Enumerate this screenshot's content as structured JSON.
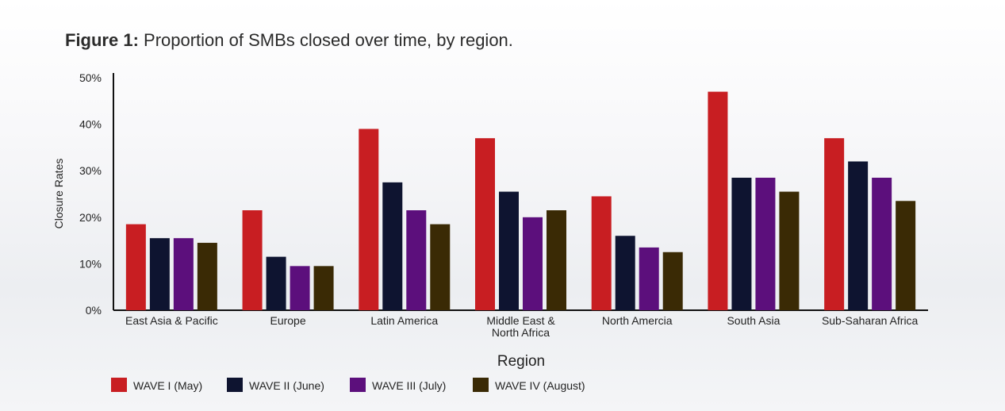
{
  "title": {
    "prefix": "Figure 1:",
    "text": " Proportion of SMBs closed over time, by region."
  },
  "chart_data": {
    "type": "bar",
    "title": "Figure 1: Proportion of SMBs closed over time, by region.",
    "xlabel": "Region",
    "ylabel": "Closure Rates",
    "ylim": [
      0,
      50
    ],
    "yticks": [
      "0%",
      "10%",
      "20%",
      "30%",
      "40%",
      "50%"
    ],
    "categories": [
      [
        "East Asia & Pacific"
      ],
      [
        "Europe"
      ],
      [
        "Latin America"
      ],
      [
        "Middle East &",
        "North Africa"
      ],
      [
        "North Amercia"
      ],
      [
        "South Asia"
      ],
      [
        "Sub-Saharan Africa"
      ]
    ],
    "series": [
      {
        "name": "WAVE I (May)",
        "color": "#c81e22",
        "values": [
          18.5,
          21.5,
          39,
          37,
          24.5,
          47,
          37
        ]
      },
      {
        "name": "WAVE II (June)",
        "color": "#0e1430",
        "values": [
          15.5,
          11.5,
          27.5,
          25.5,
          16,
          28.5,
          32
        ]
      },
      {
        "name": "WAVE III (July)",
        "color": "#5c0f7c",
        "values": [
          15.5,
          9.5,
          21.5,
          20,
          13.5,
          28.5,
          28.5
        ]
      },
      {
        "name": "WAVE IV (August)",
        "color": "#3a2a05",
        "values": [
          14.5,
          9.5,
          18.5,
          21.5,
          12.5,
          25.5,
          23.5
        ]
      }
    ],
    "legend_position": "bottom-left",
    "grid": false
  }
}
